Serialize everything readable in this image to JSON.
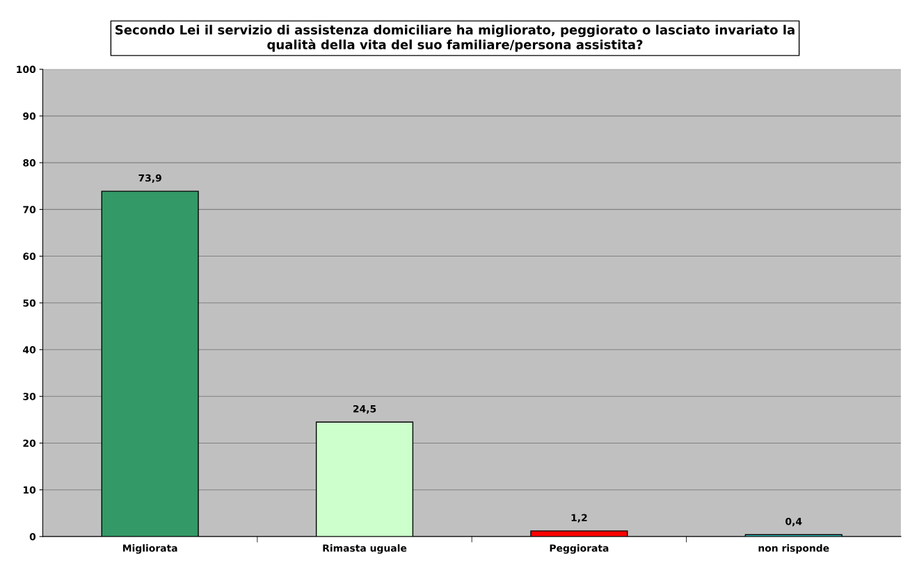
{
  "chart_data": {
    "type": "bar",
    "title": "Secondo Lei il servizio di assistenza domiciliare ha migliorato, peggiorato o lasciato invariato la\nqualità della vita del suo familiare/persona assistita?",
    "categories": [
      "Migliorata",
      "Rimasta uguale",
      "Peggiorata",
      "non risponde"
    ],
    "values": [
      73.9,
      24.5,
      1.2,
      0.4
    ],
    "colors": [
      "#339966",
      "#ccffcc",
      "#ff0000",
      "#33cccc"
    ],
    "value_labels": [
      "73,9",
      "24,5",
      "1,2",
      "0,4"
    ],
    "ylim": [
      0,
      100
    ],
    "yticks": [
      0,
      10,
      20,
      30,
      40,
      50,
      60,
      70,
      80,
      90,
      100
    ],
    "grid": "y",
    "legend": false
  }
}
